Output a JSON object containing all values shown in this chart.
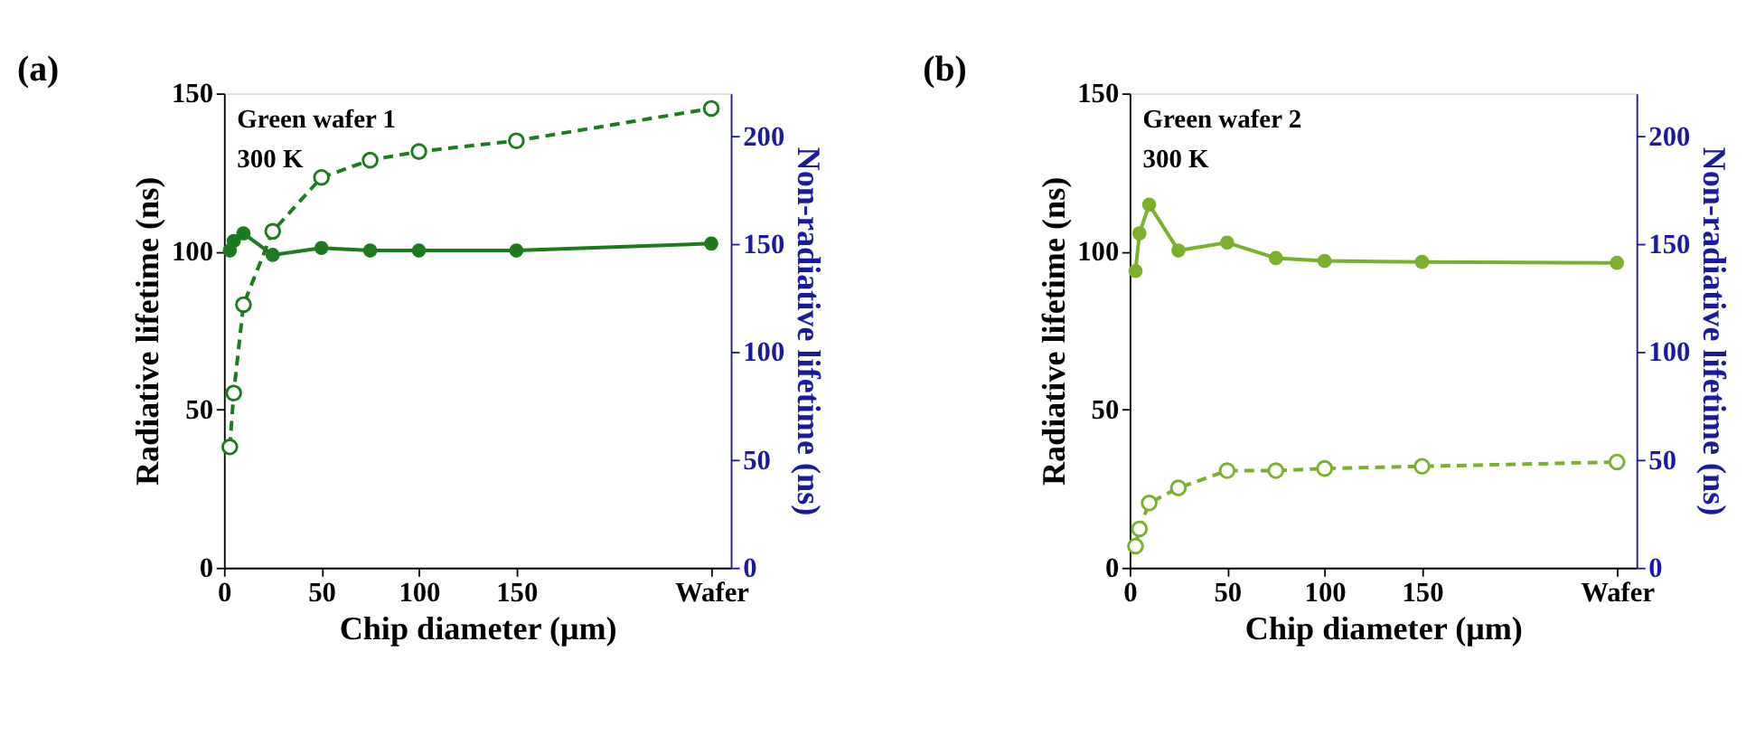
{
  "chart_data": [
    {
      "type": "line",
      "title": "(a)",
      "xlabel": "Chip diameter (μm)",
      "ylabel": "Radiative lifetime (ns)",
      "y2label": "Non-radiative lifetime (ns)",
      "annotations": [
        "Green wafer 1",
        "300 K"
      ],
      "x": [
        3,
        5,
        10,
        25,
        50,
        75,
        100,
        150,
        250
      ],
      "xlim": [
        0,
        260
      ],
      "xticks": [
        0,
        50,
        100,
        150,
        {
          "value": 250,
          "label": "Wafer"
        }
      ],
      "ylim": [
        0,
        150
      ],
      "yticks": [
        0,
        50,
        100,
        150
      ],
      "y2lim": [
        0,
        220
      ],
      "y2ticks": [
        0,
        50,
        100,
        150,
        200
      ],
      "grid": false,
      "marker": "circle",
      "series": [
        {
          "color": "#1e7a1e",
          "line_style": "solid",
          "values": [
            100.3,
            103.3,
            105.7,
            98.9,
            101.1,
            100.3,
            100.3,
            100.3,
            102.5
          ]
        },
        {
          "color": "#1e7a1e",
          "line_style": "dashed",
          "axis": "y2",
          "values": [
            56,
            81,
            122,
            156,
            181,
            189,
            193,
            198,
            213
          ]
        }
      ]
    },
    {
      "type": "line",
      "title": "(b)",
      "xlabel": "Chip diameter (μm)",
      "ylabel": "Radiative lifetime (ns)",
      "y2label": "Non-radiative lifetime (ns)",
      "annotations": [
        "Green wafer 2",
        "300 K"
      ],
      "x": [
        3,
        5,
        10,
        25,
        50,
        75,
        100,
        150,
        250
      ],
      "xlim": [
        0,
        260
      ],
      "xticks": [
        0,
        50,
        100,
        150,
        {
          "value": 250,
          "label": "Wafer"
        }
      ],
      "ylim": [
        0,
        150
      ],
      "yticks": [
        0,
        50,
        100,
        150
      ],
      "y2lim": [
        0,
        220
      ],
      "y2ticks": [
        0,
        50,
        100,
        150,
        200
      ],
      "grid": false,
      "marker": "circle",
      "series": [
        {
          "color": "#7ab02c",
          "line_style": "solid",
          "values": [
            93.8,
            105.7,
            114.8,
            100.3,
            102.8,
            97.9,
            97,
            96.7,
            96.4
          ]
        },
        {
          "color": "#7ab02c",
          "line_style": "dashed",
          "axis": "y2",
          "values": [
            10,
            18,
            30,
            37,
            45,
            45,
            46,
            47,
            49
          ]
        }
      ]
    }
  ]
}
